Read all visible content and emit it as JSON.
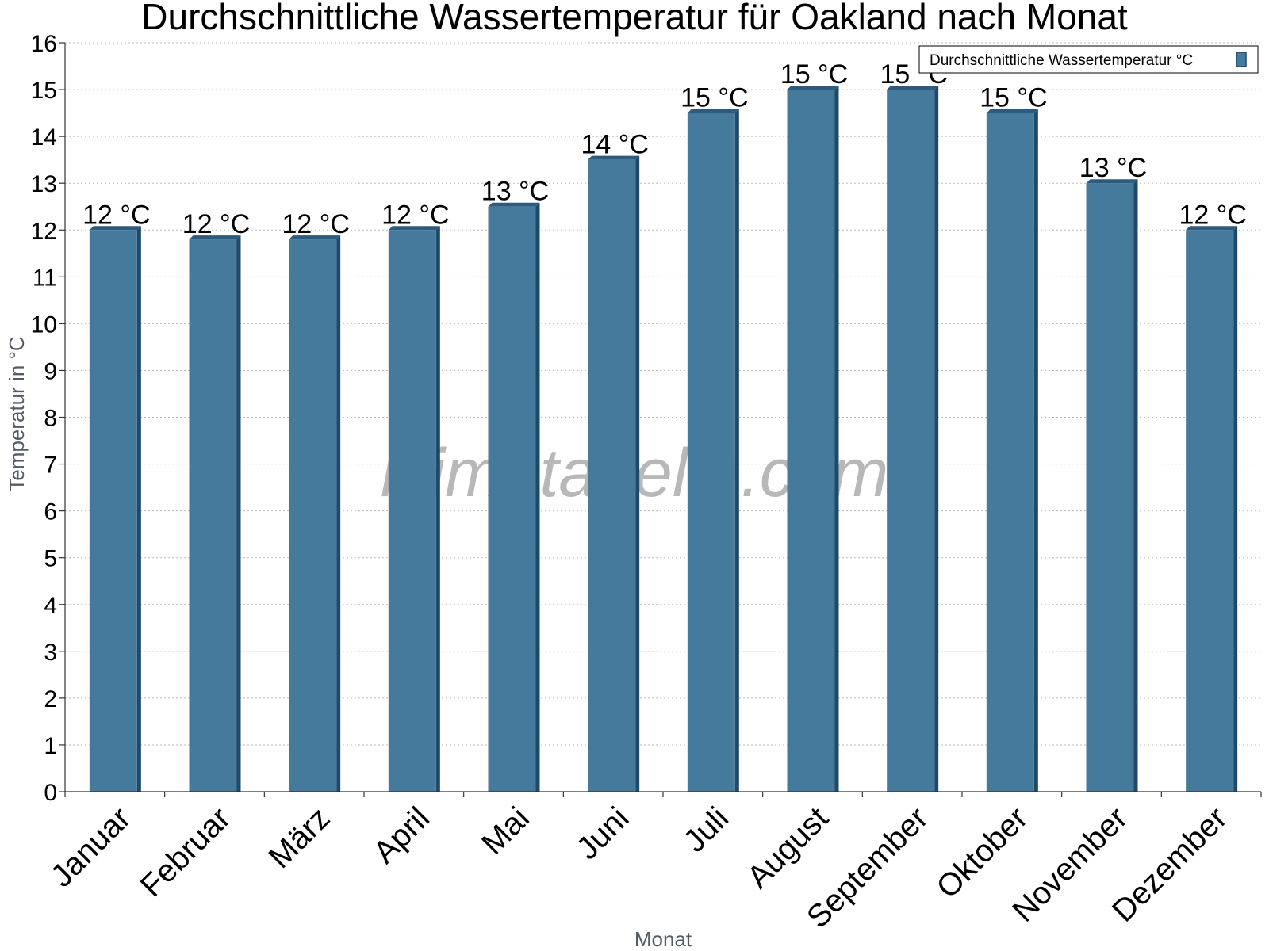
{
  "chart_data": {
    "type": "bar",
    "title": "Durchschnittliche Wassertemperatur für Oakland nach Monat",
    "xlabel": "Monat",
    "ylabel": "Temperatur in °C",
    "ylim": [
      0,
      16
    ],
    "y_ticks": [
      0,
      1,
      2,
      3,
      4,
      5,
      6,
      7,
      8,
      9,
      10,
      11,
      12,
      13,
      14,
      15,
      16
    ],
    "grid": true,
    "legend_position": "top-right",
    "categories": [
      "Januar",
      "Februar",
      "März",
      "April",
      "Mai",
      "Juni",
      "Juli",
      "August",
      "September",
      "Oktober",
      "November",
      "Dezember"
    ],
    "series": [
      {
        "name": "Durchschnittliche Wassertemperatur °C",
        "color": "#467a9c",
        "values": [
          12.0,
          11.8,
          11.8,
          12.0,
          12.5,
          13.5,
          14.5,
          15.0,
          15.0,
          14.5,
          13.0,
          12.0
        ],
        "data_labels": [
          "12 °C",
          "12 °C",
          "12 °C",
          "12 °C",
          "13 °C",
          "14 °C",
          "15 °C",
          "15 °C",
          "15 °C",
          "15 °C",
          "13 °C",
          "12 °C"
        ]
      }
    ]
  },
  "watermark": "klimatabelle.com",
  "colors": {
    "bar": "#467a9c",
    "bar_side": "#1d4a6b",
    "bar_top": "#2d5a7d"
  }
}
